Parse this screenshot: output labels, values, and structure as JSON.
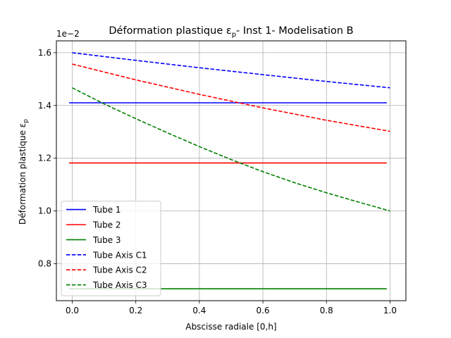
{
  "chart_data": {
    "type": "line",
    "title": "Déformation plastique ε",
    "title_sub": "p",
    "title_rest": "- Inst 1- Modelisation B",
    "xlabel": "Abscisse radiale [0,h]",
    "ylabel": "Déformation plastique ε",
    "ylabel_sub": "p",
    "offset_text": "1e−2",
    "xlim": [
      -0.05,
      1.05
    ],
    "ylim": [
      0.66,
      1.645
    ],
    "xticks": [
      0.0,
      0.2,
      0.4,
      0.6,
      0.8,
      1.0
    ],
    "xtick_labels": [
      "0.0",
      "0.2",
      "0.4",
      "0.6",
      "0.8",
      "1.0"
    ],
    "yticks": [
      0.8,
      1.0,
      1.2,
      1.4,
      1.6
    ],
    "ytick_labels": [
      "0.8",
      "1.0",
      "1.2",
      "1.4",
      "1.6"
    ],
    "grid": true,
    "legend_position": "lower-left",
    "series": [
      {
        "name": "Tube 1",
        "color": "#0000ff",
        "dash": "solid",
        "x": [
          -0.01,
          0.99
        ],
        "y": [
          1.41,
          1.41
        ]
      },
      {
        "name": "Tube 2",
        "color": "#ff0000",
        "dash": "solid",
        "x": [
          -0.01,
          0.99
        ],
        "y": [
          1.182,
          1.182
        ]
      },
      {
        "name": "Tube 3",
        "color": "#008000",
        "dash": "solid",
        "x": [
          -0.01,
          0.99
        ],
        "y": [
          0.705,
          0.705
        ]
      },
      {
        "name": "Tube Axis C1",
        "color": "#0000ff",
        "dash": "dashed",
        "x": [
          0.0,
          0.2,
          0.4,
          0.6,
          0.8,
          1.0
        ],
        "y": [
          1.6,
          1.571,
          1.543,
          1.517,
          1.491,
          1.467
        ]
      },
      {
        "name": "Tube Axis C2",
        "color": "#ff0000",
        "dash": "dashed",
        "x": [
          0.0,
          0.2,
          0.4,
          0.6,
          0.8,
          1.0
        ],
        "y": [
          1.557,
          1.497,
          1.442,
          1.391,
          1.344,
          1.302
        ]
      },
      {
        "name": "Tube Axis C3",
        "color": "#008000",
        "dash": "dashed",
        "x": [
          0.0,
          0.1,
          0.2,
          0.3,
          0.4,
          0.5,
          0.6,
          0.7,
          0.8,
          0.9,
          1.0
        ],
        "y": [
          1.467,
          1.406,
          1.35,
          1.296,
          1.244,
          1.195,
          1.149,
          1.107,
          1.069,
          1.034,
          1.0
        ]
      }
    ]
  }
}
